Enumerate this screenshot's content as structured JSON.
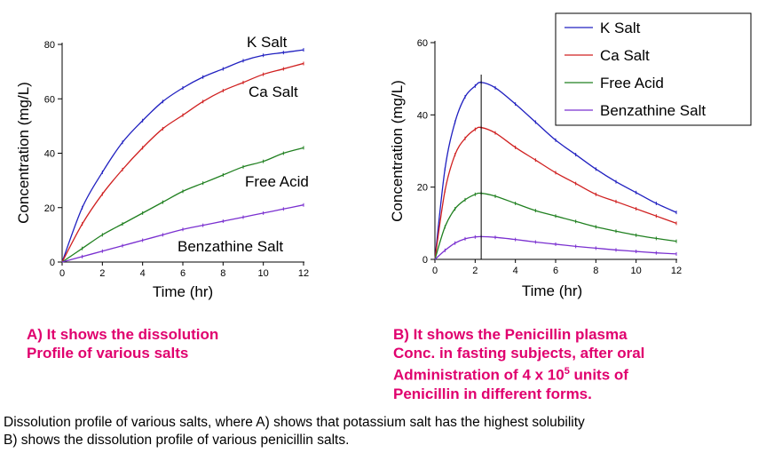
{
  "chart_data": [
    {
      "id": "A",
      "type": "line",
      "title": "",
      "xlabel": "Time (hr)",
      "ylabel": "Concentration (mg/L)",
      "xlim": [
        0,
        12
      ],
      "ylim": [
        0,
        80
      ],
      "xticks": [
        0,
        2,
        4,
        6,
        8,
        10,
        12
      ],
      "yticks": [
        0,
        20,
        40,
        60,
        80
      ],
      "grid": false,
      "legend_position": "inline labels",
      "x": [
        0,
        1,
        2,
        3,
        4,
        5,
        6,
        7,
        8,
        9,
        10,
        11,
        12
      ],
      "series": [
        {
          "name": "K Salt",
          "color": "#2020c0",
          "values": [
            0,
            20,
            33,
            44,
            52,
            59,
            64,
            68,
            71,
            74,
            76,
            77,
            78
          ]
        },
        {
          "name": "Ca Salt",
          "color": "#d02020",
          "values": [
            0,
            14,
            25,
            34,
            42,
            49,
            54,
            59,
            63,
            66,
            69,
            71,
            73
          ]
        },
        {
          "name": "Free Acid",
          "color": "#208020",
          "values": [
            0,
            5,
            10,
            14,
            18,
            22,
            26,
            29,
            32,
            35,
            37,
            40,
            42
          ]
        },
        {
          "name": "Benzathine Salt",
          "color": "#7a30d0",
          "values": [
            0,
            2,
            4,
            6,
            8,
            10,
            12,
            13.5,
            15,
            16.5,
            18,
            19.5,
            21
          ]
        }
      ]
    },
    {
      "id": "B",
      "type": "line",
      "title": "",
      "xlabel": "Time (hr)",
      "ylabel": "Concentration (mg/L)",
      "xlim": [
        0,
        12
      ],
      "ylim": [
        0,
        60
      ],
      "xticks": [
        0,
        2,
        4,
        6,
        8,
        10,
        12
      ],
      "yticks": [
        0,
        20,
        40,
        60
      ],
      "grid": false,
      "legend_position": "top-right box",
      "vertical_marker_x": 2.3,
      "x": [
        0,
        0.5,
        1,
        1.5,
        2,
        2.3,
        3,
        4,
        5,
        6,
        7,
        8,
        9,
        10,
        11,
        12
      ],
      "series": [
        {
          "name": "K Salt",
          "color": "#2020c0",
          "values": [
            0,
            25,
            38,
            45,
            48,
            49,
            47.5,
            43,
            38,
            33,
            29,
            25,
            21.5,
            18.5,
            15.5,
            13
          ]
        },
        {
          "name": "Ca Salt",
          "color": "#d02020",
          "values": [
            0,
            19,
            29,
            33.5,
            36,
            36.5,
            35,
            31,
            27.5,
            24,
            21,
            18,
            16,
            14,
            12,
            10
          ]
        },
        {
          "name": "Free Acid",
          "color": "#208020",
          "values": [
            0,
            9,
            14,
            16.5,
            18,
            18.3,
            17.5,
            15.5,
            13.5,
            12,
            10.5,
            9,
            7.8,
            6.7,
            5.8,
            5
          ]
        },
        {
          "name": "Benzathine Salt",
          "color": "#7a30d0",
          "values": [
            0,
            2.5,
            4.5,
            5.7,
            6.2,
            6.3,
            6.1,
            5.5,
            4.8,
            4.2,
            3.6,
            3.1,
            2.6,
            2.2,
            1.8,
            1.5
          ]
        }
      ]
    }
  ],
  "panel_a": {
    "ytick_labels": [
      "0",
      "20",
      "40",
      "60",
      "80"
    ],
    "xtick_labels": [
      "0",
      "2",
      "4",
      "6",
      "8",
      "10",
      "12"
    ],
    "xlabel": "Time (hr)",
    "ylabel": "Concentration (mg/L)",
    "labels": {
      "k": "K Salt",
      "ca": "Ca Salt",
      "free": "Free Acid",
      "benz": "Benzathine Salt"
    },
    "description_line1": "A) It shows the dissolution",
    "description_line2": "Profile of various salts"
  },
  "panel_b": {
    "ytick_labels": [
      "0",
      "20",
      "40",
      "60"
    ],
    "xtick_labels": [
      "0",
      "2",
      "4",
      "6",
      "8",
      "10",
      "12"
    ],
    "xlabel": "Time (hr)",
    "ylabel": "Concentration (mg/L)",
    "legend": [
      "K Salt",
      "Ca Salt",
      "Free Acid",
      "Benzathine Salt"
    ],
    "description_line1": "B) It shows the Penicillin plasma",
    "description_line2": "Conc. in fasting subjects, after oral",
    "description_line3_pre": "Administration of 4 x 10",
    "description_line3_sup": "5",
    "description_line3_post": " units of",
    "description_line4": "Penicillin in different forms."
  },
  "caption": {
    "line1": "Dissolution profile of various salts, where A) shows that potassium salt has the highest solubility",
    "line2": "B) shows the dissolution profile of various penicillin salts."
  },
  "colors": {
    "k_salt": "#2020c0",
    "ca_salt": "#d02020",
    "free_acid": "#208020",
    "benzathine": "#7a30d0",
    "description_text": "#e0006e"
  }
}
